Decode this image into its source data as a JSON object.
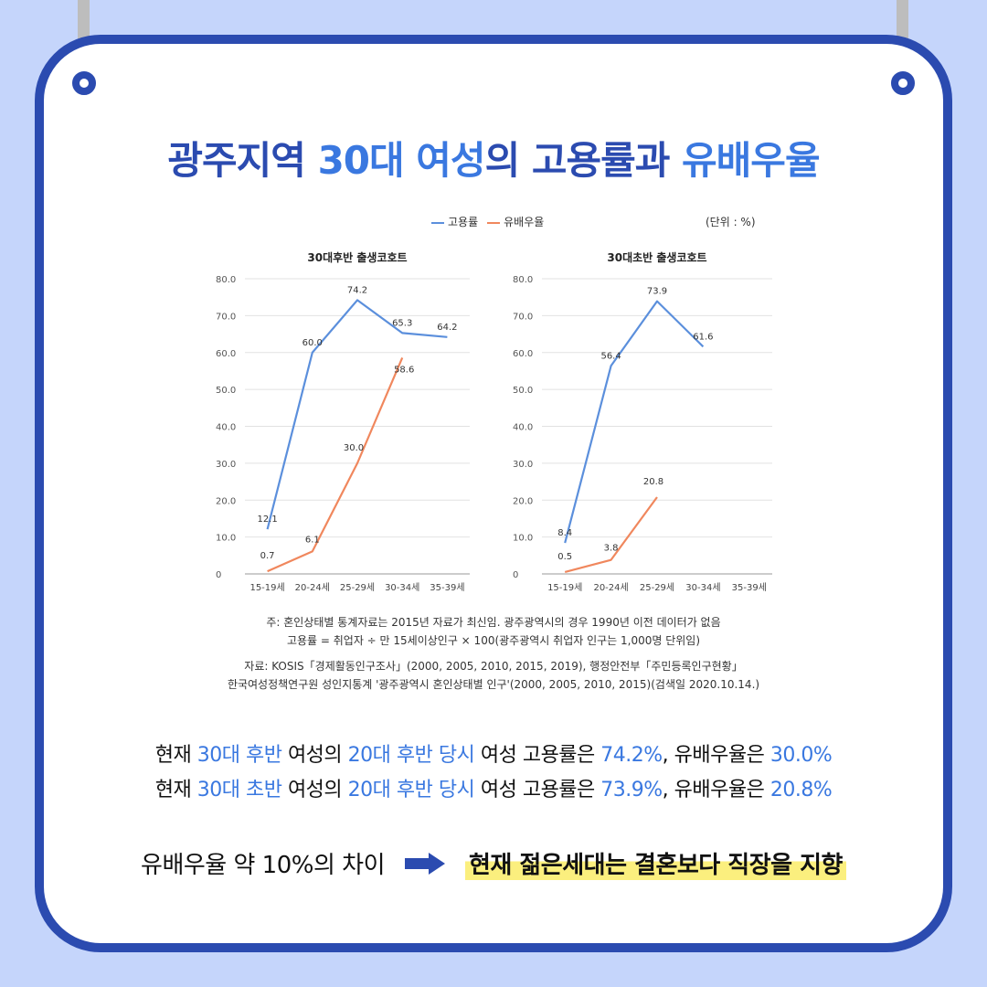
{
  "title": {
    "part1": "광주지역",
    "part2": "30대 여성",
    "part3": "의 고용률과",
    "part4": "유배우율"
  },
  "legend": {
    "employment": "고용률",
    "marriage": "유배우율"
  },
  "unit": "(단위 : %)",
  "colors": {
    "employment": "#5b8fdc",
    "marriage": "#f0875d",
    "frame": "#2b4bb0",
    "accent": "#3a78e0",
    "background": "#c5d5fb"
  },
  "chart_data": [
    {
      "type": "line",
      "title": "30대후반 출생코호트",
      "categories": [
        "15-19세",
        "20-24세",
        "25-29세",
        "30-34세",
        "35-39세"
      ],
      "ylim": [
        0,
        80
      ],
      "yticks": [
        "0",
        "10.0",
        "20.0",
        "30.0",
        "40.0",
        "50.0",
        "60.0",
        "70.0",
        "80.0"
      ],
      "grid": true,
      "series": [
        {
          "name": "고용률",
          "values": [
            12.1,
            60.0,
            74.2,
            65.3,
            64.2
          ],
          "labels": [
            "12.1",
            "60.0",
            "74.2",
            "65.3",
            "64.2"
          ]
        },
        {
          "name": "유배우율",
          "values": [
            0.7,
            6.1,
            30.0,
            58.6,
            null
          ],
          "labels": [
            "0.7",
            "6.1",
            "30.0",
            "58.6",
            null
          ]
        }
      ]
    },
    {
      "type": "line",
      "title": "30대초반 출생코호트",
      "categories": [
        "15-19세",
        "20-24세",
        "25-29세",
        "30-34세",
        "35-39세"
      ],
      "ylim": [
        0,
        80
      ],
      "yticks": [
        "0",
        "10.0",
        "20.0",
        "30.0",
        "40.0",
        "50.0",
        "60.0",
        "70.0",
        "80.0"
      ],
      "grid": true,
      "series": [
        {
          "name": "고용률",
          "values": [
            8.4,
            56.4,
            73.9,
            61.6,
            null
          ],
          "labels": [
            "8.4",
            "56.4",
            "73.9",
            "61.6",
            null
          ]
        },
        {
          "name": "유배우율",
          "values": [
            0.5,
            3.8,
            20.8,
            null,
            null
          ],
          "labels": [
            "0.5",
            "3.8",
            "20.8",
            null,
            null
          ]
        }
      ]
    }
  ],
  "notes": {
    "line1": "주: 혼인상태별 통계자료는 2015년 자료가 최신임. 광주광역시의 경우 1990년 이전 데이터가 없음",
    "line2": "고용률 = 취업자 ÷ 만 15세이상인구 × 100(광주광역시 취업자 인구는 1,000명 단위임)",
    "line3": "자료: KOSIS「경제활동인구조사」(2000, 2005, 2010, 2015, 2019), 행정안전부「주민등록인구현황」",
    "line4": "한국여성정책연구원 성인지통계 '광주광역시 혼인상태별 인구'(2000, 2005, 2010, 2015)(검색일 2020.10.14.)"
  },
  "summary": [
    {
      "a": "현재 ",
      "b": "30대 후반",
      "c": " 여성의 ",
      "d": "20대 후반 당시",
      "e": " 여성 고용률은 ",
      "f": "74.2%",
      "g": ", 유배우율은 ",
      "h": "30.0%"
    },
    {
      "a": "현재 ",
      "b": "30대 초반",
      "c": " 여성의 ",
      "d": "20대 후반 당시",
      "e": " 여성 고용률은 ",
      "f": "73.9%",
      "g": ", 유배우율은 ",
      "h": "20.8%"
    }
  ],
  "conclusion": {
    "left": "유배우율 약 10%의 차이",
    "arrow_icon": "right-arrow-icon",
    "right": "현재 젊은세대는 결혼보다 직장을 지향"
  }
}
